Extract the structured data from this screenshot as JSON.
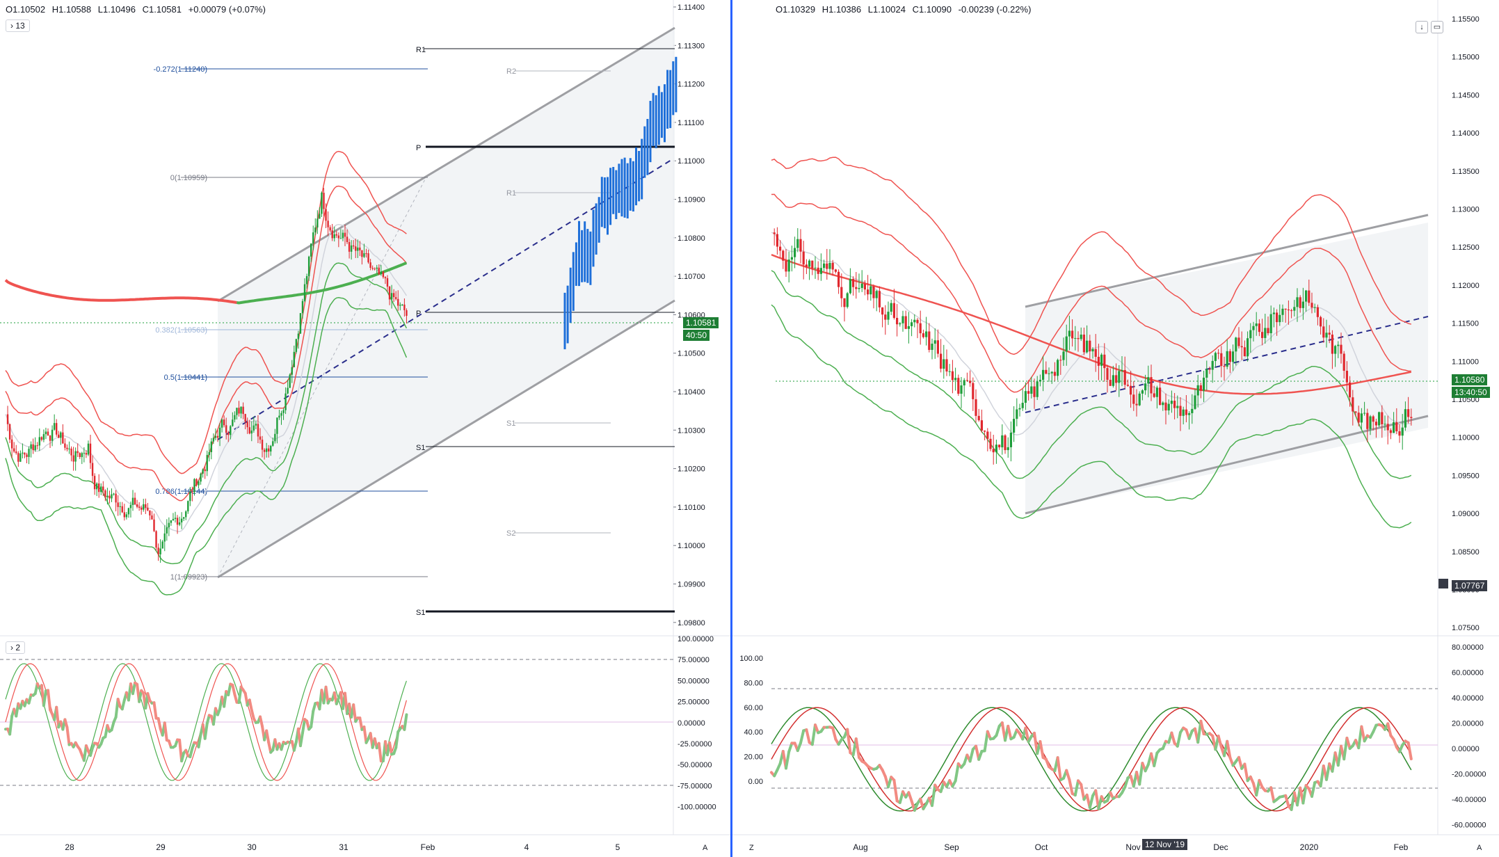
{
  "left_chart": {
    "ohlc": {
      "open": "O1.10502",
      "high": "H1.10588",
      "low": "L1.10496",
      "close": "C1.10581",
      "change": "+0.00079 (+0.07%)"
    },
    "interval_badge": "13",
    "price_scale": [
      "1.11400",
      "1.11300",
      "1.11200",
      "1.11100",
      "1.11000",
      "1.10900",
      "1.10800",
      "1.10700",
      "1.10600",
      "1.10500",
      "1.10400",
      "1.10300",
      "1.10200",
      "1.10100",
      "1.10000",
      "1.09900",
      "1.09800"
    ],
    "price_tag": {
      "value": "1.10581",
      "countdown": "40:50",
      "color": "#1e7e34"
    },
    "fib_labels": {
      "ext": "-0.272(1.11240)",
      "f0": "0(1.10959)",
      "f382": "0.382(1.10563)",
      "f5": "0.5(1.10441)",
      "f786": "0.786(1.10144)",
      "f1": "1(1.09923)"
    },
    "pivot_labels": {
      "r1": "R1",
      "p": "P",
      "p2": "P",
      "s1": "S1",
      "s1b": "S1",
      "r2": "R2",
      "r1b": "R1",
      "s1c": "S1",
      "s2": "S2"
    },
    "osc_badge": "2",
    "osc_scale": [
      "100.00000",
      "75.00000",
      "50.00000",
      "25.00000",
      "0.00000",
      "-25.00000",
      "-50.00000",
      "-75.00000",
      "-100.00000"
    ],
    "time_axis": [
      "28",
      "29",
      "30",
      "31",
      "Feb",
      "4",
      "5"
    ],
    "corner_label": "A"
  },
  "right_chart": {
    "ohlc": {
      "open": "O1.10329",
      "high": "H1.10386",
      "low": "L1.10024",
      "close": "C1.10090",
      "change": "-0.00239 (-0.22%)"
    },
    "price_scale": [
      "1.15500",
      "1.15000",
      "1.14500",
      "1.14000",
      "1.13500",
      "1.13000",
      "1.12500",
      "1.12000",
      "1.11500",
      "1.11000",
      "1.10500",
      "1.10000",
      "1.09500",
      "1.09000",
      "1.08500",
      "1.08000",
      "1.07500"
    ],
    "price_tag": {
      "value": "1.10580",
      "countdown": "13:40:50",
      "color": "#1e7e34"
    },
    "crosshair_tag": "1.07767",
    "osc_left_scale": [
      "100.00",
      "80.00",
      "60.00",
      "40.00",
      "20.00",
      "0.00"
    ],
    "osc_right_scale": [
      "80.00000",
      "60.00000",
      "40.00000",
      "20.00000",
      "0.00000",
      "-20.00000",
      "-40.00000",
      "-60.00000"
    ],
    "time_axis": [
      "Aug",
      "Sep",
      "Oct",
      "Nov",
      "Dec",
      "2020",
      "Feb"
    ],
    "time_tooltip": "12 Nov '19",
    "corner_left": "Z",
    "corner_right": "A",
    "icons": [
      "arrow-down-icon",
      "square-icon"
    ]
  },
  "colors": {
    "up": "#1e9e3a",
    "down": "#e0282e",
    "ma_red": "#ef5350",
    "ma_green": "#4caf50",
    "channel": "#9e9fa3",
    "projection": "#1e6fd9"
  }
}
